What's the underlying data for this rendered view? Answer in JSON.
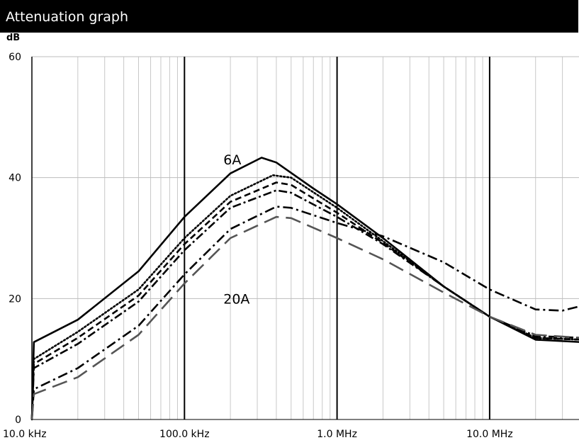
{
  "header": {
    "title": "Attenuation graph"
  },
  "chart_data": {
    "type": "line",
    "title": "Attenuation graph",
    "ylabel": "dB",
    "xlabel": "",
    "x_scale": "log",
    "xlim": [
      10000,
      40000000
    ],
    "ylim": [
      0,
      60
    ],
    "x_ticks": [
      {
        "value": 10000,
        "label": "10.0 kHz"
      },
      {
        "value": 100000,
        "label": "100.0 kHz"
      },
      {
        "value": 1000000,
        "label": "1.0 MHz"
      },
      {
        "value": 10000000,
        "label": "10.0 MHz"
      }
    ],
    "y_ticks": [
      {
        "value": 0,
        "label": "0"
      },
      {
        "value": 20,
        "label": "20"
      },
      {
        "value": 40,
        "label": "40"
      },
      {
        "value": 60,
        "label": "60"
      }
    ],
    "grid": true,
    "annotations": [
      {
        "text": "6A",
        "x": 180000,
        "y": 43
      },
      {
        "text": "20A",
        "x": 180000,
        "y": 20
      }
    ],
    "series": [
      {
        "style": "solid",
        "color": "#000000",
        "x": [
          10000,
          10300,
          20000,
          50000,
          100000,
          200000,
          320000,
          400000,
          700000,
          1000000,
          2000000,
          5000000,
          10000000,
          20000000,
          40000000
        ],
        "y": [
          0,
          12.8,
          16.5,
          24.5,
          33.5,
          40.7,
          43.3,
          42.5,
          38.2,
          35.6,
          30.0,
          22.0,
          17.0,
          13.2,
          12.8
        ]
      },
      {
        "style": "dotted",
        "color": "#000000",
        "x": [
          10000,
          10300,
          20000,
          50000,
          100000,
          200000,
          380000,
          500000,
          1000000,
          2000000,
          5000000,
          10000000,
          20000000,
          40000000
        ],
        "y": [
          0,
          10.0,
          14.5,
          21.5,
          30.0,
          37.0,
          40.4,
          40.0,
          35.0,
          29.5,
          22.0,
          17.0,
          13.5,
          13.2
        ]
      },
      {
        "style": "dashed",
        "color": "#000000",
        "x": [
          10000,
          10300,
          20000,
          50000,
          100000,
          200000,
          400000,
          500000,
          1000000,
          2000000,
          5000000,
          10000000,
          20000000,
          40000000
        ],
        "y": [
          0,
          9.2,
          13.5,
          20.5,
          29.0,
          36.0,
          39.2,
          38.8,
          34.2,
          29.2,
          22.0,
          17.0,
          13.5,
          13.2
        ]
      },
      {
        "style": "dashdot",
        "color": "#000000",
        "x": [
          10000,
          10300,
          20000,
          50000,
          100000,
          200000,
          400000,
          500000,
          1000000,
          2000000,
          5000000,
          10000000,
          20000000,
          40000000
        ],
        "y": [
          0,
          8.5,
          12.5,
          19.5,
          28.0,
          35.0,
          37.9,
          37.5,
          33.5,
          29.0,
          22.0,
          17.0,
          13.8,
          13.5
        ]
      },
      {
        "style": "dashdot2",
        "color": "#000000",
        "x": [
          10000,
          10300,
          20000,
          50000,
          100000,
          200000,
          400000,
          500000,
          1000000,
          2000000,
          5000000,
          10000000,
          20000000,
          30000000,
          40000000
        ],
        "y": [
          0,
          5.0,
          8.5,
          15.5,
          24.0,
          31.5,
          35.2,
          35.0,
          32.5,
          30.3,
          26.0,
          21.5,
          18.2,
          18.0,
          18.8
        ]
      },
      {
        "style": "longdash",
        "color": "#555555",
        "x": [
          10000,
          10300,
          20000,
          50000,
          100000,
          200000,
          400000,
          500000,
          1000000,
          2000000,
          5000000,
          10000000,
          20000000,
          40000000
        ],
        "y": [
          0,
          4.2,
          7.0,
          14.0,
          22.5,
          30.0,
          33.5,
          33.3,
          30.0,
          26.5,
          21.0,
          17.0,
          14.0,
          13.5
        ]
      }
    ]
  }
}
